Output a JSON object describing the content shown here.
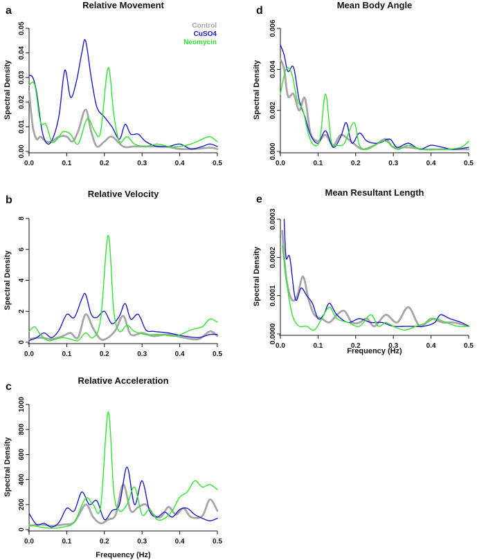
{
  "figure": {
    "legend": [
      {
        "name": "Control",
        "color": "#a6a6a6"
      },
      {
        "name": "CuSO4",
        "color": "#1a1ac8"
      },
      {
        "name": "Neomycin",
        "color": "#2ee52e"
      }
    ]
  },
  "chart_data": [
    {
      "panel": "a",
      "type": "line",
      "title": "Relative Movement",
      "xlabel": "",
      "ylabel": "Spectral Density",
      "xlim": [
        0,
        0.5
      ],
      "ylim": [
        0,
        0.05
      ],
      "xticks": [
        "0.0",
        "0.1",
        "0.2",
        "0.3",
        "0.4",
        "0.5"
      ],
      "yticks": [
        "0.00",
        "0.01",
        "0.02",
        "0.03",
        "0.04",
        "0.05"
      ],
      "legend": "top-right",
      "series": [
        {
          "name": "Control",
          "color": "#a6a6a6",
          "x": [
            0,
            0.01,
            0.02,
            0.03,
            0.045,
            0.06,
            0.08,
            0.1,
            0.115,
            0.13,
            0.15,
            0.165,
            0.18,
            0.2,
            0.22,
            0.25,
            0.28,
            0.32,
            0.36,
            0.4,
            0.44,
            0.48,
            0.5
          ],
          "y": [
            0.024,
            0.01,
            0.005,
            0.006,
            0.004,
            0.004,
            0.006,
            0.006,
            0.004,
            0.008,
            0.017,
            0.008,
            0.002,
            0.004,
            0.006,
            0.002,
            0.002,
            0.002,
            0.002,
            0.001,
            0.001,
            0.0015,
            0.001
          ]
        },
        {
          "name": "CuSO4",
          "color": "#1a1ac8",
          "x": [
            0,
            0.01,
            0.02,
            0.035,
            0.05,
            0.065,
            0.08,
            0.095,
            0.11,
            0.125,
            0.14,
            0.15,
            0.165,
            0.18,
            0.2,
            0.22,
            0.24,
            0.255,
            0.27,
            0.29,
            0.31,
            0.34,
            0.37,
            0.4,
            0.43,
            0.46,
            0.48,
            0.5
          ],
          "y": [
            0.031,
            0.03,
            0.024,
            0.008,
            0.003,
            0.006,
            0.015,
            0.033,
            0.022,
            0.028,
            0.04,
            0.045,
            0.03,
            0.018,
            0.014,
            0.01,
            0.005,
            0.011,
            0.007,
            0.007,
            0.004,
            0.002,
            0.002,
            0.003,
            0.001,
            0.002,
            0.003,
            0.002
          ]
        },
        {
          "name": "Neomycin",
          "color": "#2ee52e",
          "x": [
            0,
            0.015,
            0.03,
            0.045,
            0.06,
            0.075,
            0.09,
            0.11,
            0.13,
            0.15,
            0.16,
            0.175,
            0.19,
            0.21,
            0.225,
            0.24,
            0.26,
            0.28,
            0.31,
            0.34,
            0.37,
            0.4,
            0.43,
            0.46,
            0.48,
            0.5
          ],
          "y": [
            0.027,
            0.027,
            0.012,
            0.011,
            0.004,
            0.005,
            0.008,
            0.007,
            0.003,
            0.012,
            0.013,
            0.008,
            0.008,
            0.034,
            0.015,
            0.004,
            0.006,
            0.003,
            0.002,
            0.003,
            0.002,
            0.002,
            0.003,
            0.005,
            0.006,
            0.004
          ]
        }
      ]
    },
    {
      "panel": "b",
      "type": "line",
      "title": "Relative Velocity",
      "xlabel": "",
      "ylabel": "Spectral Density",
      "xlim": [
        0,
        0.5
      ],
      "ylim": [
        0,
        8
      ],
      "xticks": [
        "0.0",
        "0.1",
        "0.2",
        "0.3",
        "0.4",
        "0.5"
      ],
      "yticks": [
        "0",
        "2",
        "4",
        "6",
        "8"
      ],
      "series": [
        {
          "name": "Control",
          "color": "#a6a6a6",
          "x": [
            0,
            0.03,
            0.06,
            0.09,
            0.11,
            0.13,
            0.15,
            0.17,
            0.19,
            0.21,
            0.23,
            0.25,
            0.27,
            0.3,
            0.33,
            0.37,
            0.41,
            0.45,
            0.48,
            0.5
          ],
          "y": [
            0.2,
            0.3,
            0.2,
            0.4,
            0.6,
            0.3,
            1.8,
            0.9,
            0.2,
            0.3,
            0.8,
            1.7,
            0.5,
            0.6,
            0.4,
            0.5,
            0.3,
            0.2,
            0.7,
            0.4
          ]
        },
        {
          "name": "CuSO4",
          "color": "#1a1ac8",
          "x": [
            0,
            0.02,
            0.04,
            0.06,
            0.08,
            0.1,
            0.12,
            0.14,
            0.15,
            0.165,
            0.18,
            0.2,
            0.22,
            0.24,
            0.255,
            0.27,
            0.29,
            0.31,
            0.33,
            0.37,
            0.41,
            0.45,
            0.48,
            0.5
          ],
          "y": [
            0.1,
            0.3,
            0.6,
            0.3,
            0.8,
            1.8,
            1.6,
            2.8,
            3.1,
            1.8,
            1.6,
            2.0,
            1.2,
            1.7,
            2.5,
            1.5,
            1.8,
            0.8,
            0.7,
            0.6,
            0.4,
            0.3,
            0.5,
            0.5
          ]
        },
        {
          "name": "Neomycin",
          "color": "#2ee52e",
          "x": [
            0,
            0.015,
            0.03,
            0.05,
            0.07,
            0.09,
            0.11,
            0.13,
            0.15,
            0.17,
            0.19,
            0.21,
            0.225,
            0.24,
            0.26,
            0.28,
            0.31,
            0.35,
            0.39,
            0.43,
            0.46,
            0.48,
            0.5
          ],
          "y": [
            0.7,
            1.0,
            0.5,
            0.1,
            0.2,
            0.3,
            0.2,
            0.1,
            0.6,
            0.3,
            1.5,
            6.9,
            2.0,
            0.7,
            1.1,
            0.7,
            0.5,
            0.5,
            0.4,
            0.8,
            1.0,
            1.5,
            1.3
          ]
        }
      ]
    },
    {
      "panel": "c",
      "type": "line",
      "title": "Relative Acceleration",
      "xlabel": "Frequency (Hz)",
      "ylabel": "Spectral Density",
      "xlim": [
        0,
        0.5
      ],
      "ylim": [
        0,
        1000
      ],
      "xticks": [
        "0.0",
        "0.1",
        "0.2",
        "0.3",
        "0.4",
        "0.5"
      ],
      "yticks": [
        "0",
        "200",
        "400",
        "600",
        "800",
        "1000"
      ],
      "series": [
        {
          "name": "Control",
          "color": "#a6a6a6",
          "x": [
            0,
            0.03,
            0.06,
            0.09,
            0.12,
            0.15,
            0.17,
            0.19,
            0.21,
            0.23,
            0.25,
            0.27,
            0.29,
            0.31,
            0.33,
            0.35,
            0.37,
            0.39,
            0.41,
            0.43,
            0.46,
            0.48,
            0.5
          ],
          "y": [
            30,
            40,
            30,
            40,
            60,
            200,
            100,
            50,
            80,
            120,
            360,
            150,
            180,
            200,
            120,
            100,
            180,
            120,
            170,
            100,
            110,
            240,
            150
          ]
        },
        {
          "name": "CuSO4",
          "color": "#1a1ac8",
          "x": [
            0,
            0.02,
            0.04,
            0.06,
            0.08,
            0.1,
            0.12,
            0.14,
            0.16,
            0.18,
            0.2,
            0.22,
            0.24,
            0.26,
            0.28,
            0.3,
            0.32,
            0.34,
            0.36,
            0.38,
            0.4,
            0.42,
            0.44,
            0.46,
            0.48,
            0.5
          ],
          "y": [
            130,
            40,
            50,
            20,
            60,
            170,
            150,
            300,
            200,
            230,
            80,
            150,
            200,
            500,
            200,
            390,
            150,
            100,
            140,
            100,
            160,
            170,
            120,
            90,
            70,
            90
          ]
        },
        {
          "name": "Neomycin",
          "color": "#2ee52e",
          "x": [
            0,
            0.03,
            0.06,
            0.09,
            0.12,
            0.15,
            0.17,
            0.19,
            0.21,
            0.225,
            0.24,
            0.26,
            0.28,
            0.3,
            0.32,
            0.34,
            0.36,
            0.38,
            0.4,
            0.42,
            0.44,
            0.46,
            0.48,
            0.5
          ],
          "y": [
            40,
            20,
            10,
            20,
            60,
            250,
            200,
            180,
            940,
            300,
            150,
            200,
            340,
            120,
            160,
            80,
            90,
            150,
            260,
            300,
            390,
            340,
            360,
            320
          ]
        }
      ]
    },
    {
      "panel": "d",
      "type": "line",
      "title": "Mean Body Angle",
      "xlabel": "",
      "ylabel": "Spectral Density",
      "xlim": [
        0,
        0.5
      ],
      "ylim": [
        0,
        0.006
      ],
      "xticks": [
        "0.0",
        "0.1",
        "0.2",
        "0.3",
        "0.4",
        "0.5"
      ],
      "yticks": [
        "0.000",
        "0.002",
        "0.004",
        "0.006"
      ],
      "series": [
        {
          "name": "Control",
          "color": "#a6a6a6",
          "x": [
            0,
            0.01,
            0.02,
            0.035,
            0.05,
            0.065,
            0.08,
            0.1,
            0.12,
            0.14,
            0.16,
            0.18,
            0.2,
            0.22,
            0.25,
            0.28,
            0.3,
            0.34,
            0.38,
            0.42,
            0.46,
            0.5
          ],
          "y": [
            0.0045,
            0.004,
            0.0027,
            0.0028,
            0.002,
            0.0026,
            0.0009,
            0.0005,
            0.0008,
            0.0003,
            0.0008,
            0.0006,
            0.0003,
            0.0001,
            0.0003,
            0.0006,
            0.0002,
            0.0002,
            0.0001,
            0.0001,
            0.0001,
            0.0001
          ]
        },
        {
          "name": "CuSO4",
          "color": "#1a1ac8",
          "x": [
            0,
            0.01,
            0.02,
            0.035,
            0.05,
            0.065,
            0.08,
            0.1,
            0.12,
            0.14,
            0.16,
            0.175,
            0.19,
            0.21,
            0.23,
            0.26,
            0.29,
            0.31,
            0.34,
            0.37,
            0.4,
            0.43,
            0.46,
            0.5
          ],
          "y": [
            0.0052,
            0.0047,
            0.0039,
            0.0041,
            0.0025,
            0.0017,
            0.0008,
            0.0004,
            0.001,
            0.0002,
            0.0007,
            0.0014,
            0.0004,
            0.0009,
            0.0005,
            0.0004,
            0.0006,
            0.0002,
            0.0004,
            0.0001,
            0.0003,
            0.0002,
            0.0001,
            0.0002
          ]
        },
        {
          "name": "Neomycin",
          "color": "#2ee52e",
          "x": [
            0,
            0.015,
            0.03,
            0.045,
            0.06,
            0.075,
            0.09,
            0.105,
            0.12,
            0.135,
            0.15,
            0.17,
            0.195,
            0.21,
            0.23,
            0.26,
            0.28,
            0.31,
            0.34,
            0.37,
            0.4,
            0.44,
            0.48,
            0.5
          ],
          "y": [
            0.0028,
            0.004,
            0.0038,
            0.0025,
            0.002,
            0.0008,
            0.0003,
            0.0006,
            0.0028,
            0.0005,
            0.0003,
            0.0004,
            0.0014,
            0.0003,
            0.0001,
            0.0004,
            0.0005,
            0.0001,
            0.0003,
            0.0001,
            0.0001,
            0.0001,
            0.0002,
            0.0005
          ]
        }
      ]
    },
    {
      "panel": "e",
      "type": "line",
      "title": "Mean Resultant Length",
      "xlabel": "Frequency (Hz)",
      "ylabel": "Spectral Density",
      "xlim": [
        0,
        0.5
      ],
      "ylim": [
        0,
        0.0003
      ],
      "xticks": [
        "0.0",
        "0.1",
        "0.2",
        "0.3",
        "0.4",
        "0.5"
      ],
      "yticks": [
        "0.0000",
        "0.0001",
        "0.0002",
        "0.0003"
      ],
      "series": [
        {
          "name": "Control",
          "color": "#a6a6a6",
          "x": [
            0.005,
            0.015,
            0.03,
            0.045,
            0.06,
            0.075,
            0.09,
            0.11,
            0.13,
            0.15,
            0.17,
            0.19,
            0.21,
            0.23,
            0.25,
            0.28,
            0.31,
            0.34,
            0.37,
            0.4,
            0.43,
            0.46,
            0.5
          ],
          "y": [
            0.00027,
            0.00015,
            9e-05,
            0.0001,
            0.00015,
            9e-05,
            5e-05,
            4e-05,
            3e-05,
            5e-05,
            6e-05,
            3e-05,
            3e-05,
            4e-05,
            2e-05,
            5e-05,
            3e-05,
            7e-05,
            2e-05,
            4e-05,
            3e-05,
            3e-05,
            2e-05
          ]
        },
        {
          "name": "CuSO4",
          "color": "#1a1ac8",
          "x": [
            0.01,
            0.015,
            0.025,
            0.04,
            0.055,
            0.07,
            0.085,
            0.1,
            0.115,
            0.13,
            0.15,
            0.18,
            0.21,
            0.24,
            0.27,
            0.3,
            0.34,
            0.38,
            0.41,
            0.425,
            0.45,
            0.48,
            0.5
          ],
          "y": [
            0.0003,
            0.0002,
            0.0002,
            9e-05,
            0.00012,
            0.0001,
            8e-05,
            4e-05,
            5e-05,
            8e-05,
            5e-05,
            3e-05,
            4e-05,
            3e-05,
            3e-05,
            2e-05,
            2e-05,
            2e-05,
            3e-05,
            5e-05,
            4e-05,
            3e-05,
            2e-05
          ]
        },
        {
          "name": "Neomycin",
          "color": "#2ee52e",
          "x": [
            0.005,
            0.015,
            0.025,
            0.035,
            0.05,
            0.07,
            0.09,
            0.11,
            0.13,
            0.15,
            0.18,
            0.21,
            0.24,
            0.26,
            0.28,
            0.3,
            0.33,
            0.36,
            0.39,
            0.41,
            0.44,
            0.47,
            0.5
          ],
          "y": [
            0.00023,
            0.00015,
            8e-05,
            4e-05,
            2e-05,
            2e-05,
            1e-05,
            4e-05,
            7e-05,
            4e-05,
            3e-05,
            2e-05,
            5e-05,
            2e-05,
            3e-05,
            2e-05,
            1e-05,
            2e-05,
            3e-05,
            4e-05,
            3e-05,
            2e-05,
            2e-05
          ]
        }
      ]
    }
  ]
}
